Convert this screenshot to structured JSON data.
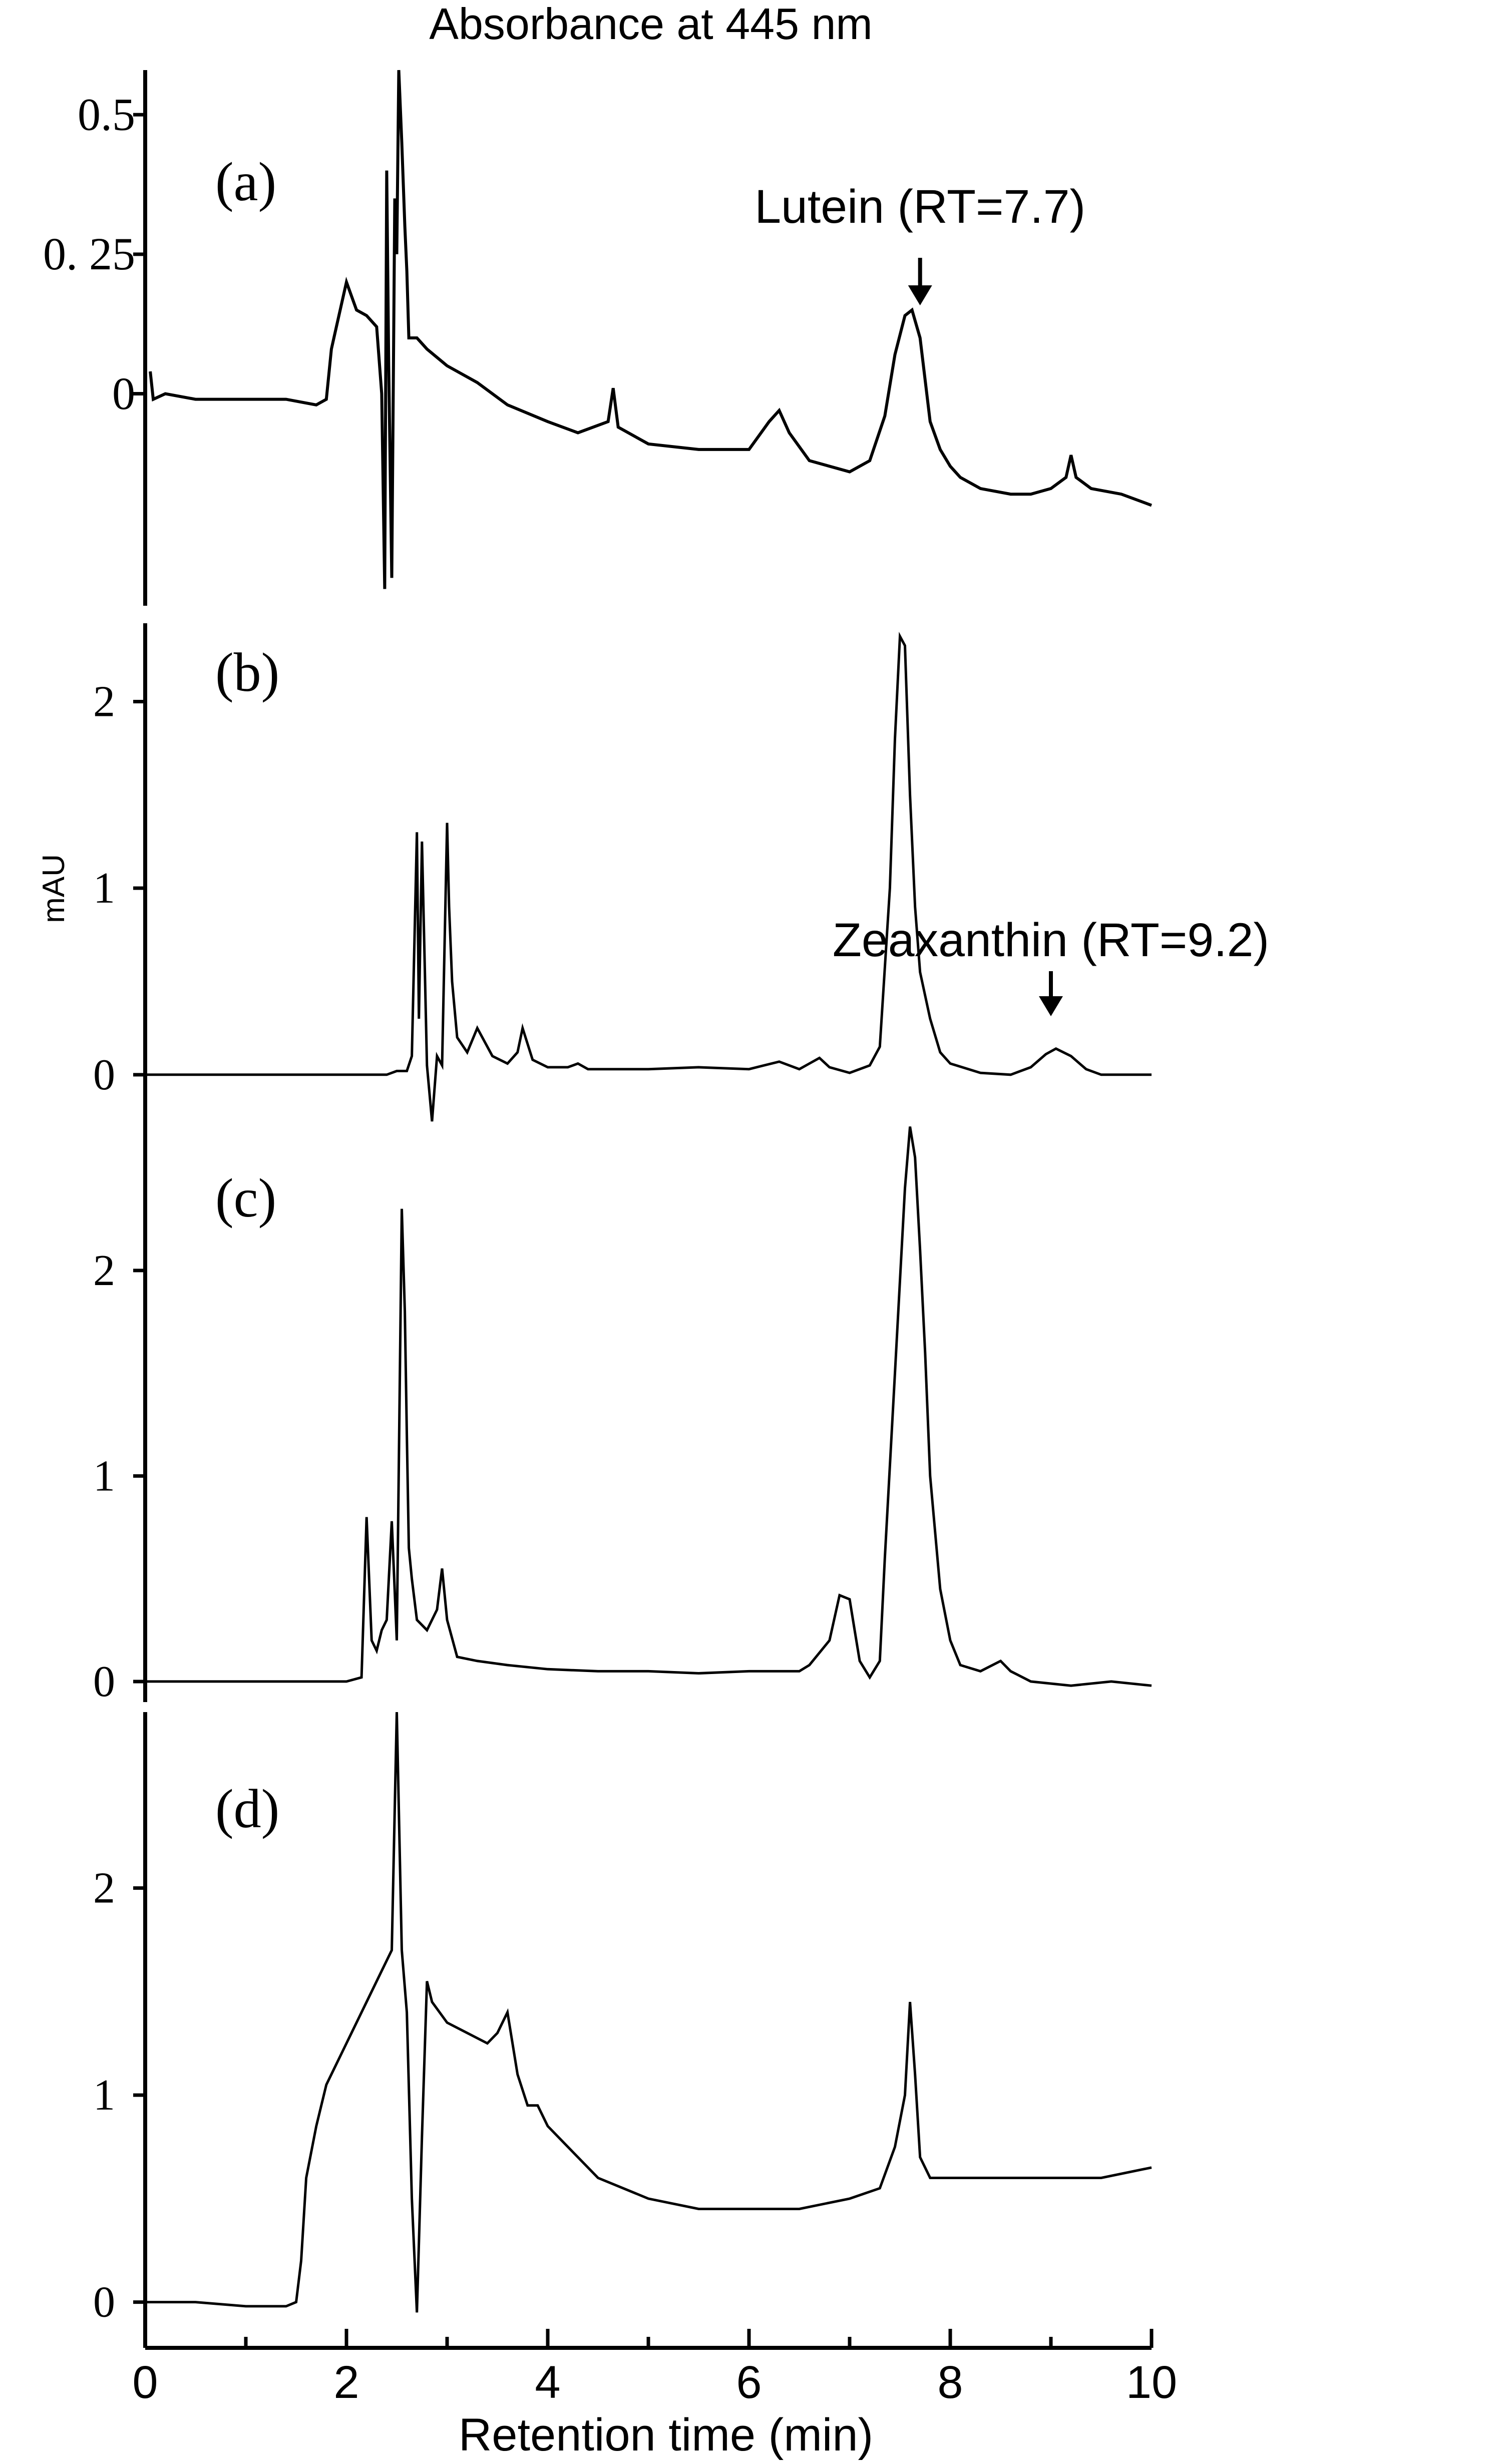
{
  "chart_data": {
    "type": "line",
    "title": "Absorbance at 445 nm",
    "xlabel": "Retention time (min)",
    "ylabel": "mAU",
    "xlim": [
      0,
      10
    ],
    "x_ticks": [
      "0",
      "2",
      "4",
      "6",
      "8",
      "10"
    ],
    "shared_x_axis": true,
    "grid": false,
    "legend": "none",
    "line_color": "#000000",
    "panels": [
      {
        "label": "(a)",
        "ylim": [
          -0.38,
          0.58
        ],
        "y_ticks": [
          {
            "value": 0.5,
            "label": "0.5"
          },
          {
            "value": 0.25,
            "label": "0. 25"
          },
          {
            "value": 0,
            "label": "0"
          }
        ],
        "annotations": [
          {
            "text": "Lutein (RT=7.7)",
            "x": 7.7,
            "arrow": true
          }
        ],
        "series": [
          {
            "x": [
              0.05,
              0.08,
              0.2,
              0.5,
              0.8,
              1.1,
              1.4,
              1.7,
              1.8,
              1.85,
              1.9,
              2.0,
              2.1,
              2.2,
              2.3,
              2.35,
              2.38,
              2.4,
              2.42,
              2.45,
              2.48,
              2.5,
              2.52,
              2.55,
              2.58,
              2.6,
              2.62,
              2.65,
              2.7,
              2.8,
              3.0,
              3.3,
              3.6,
              4.0,
              4.3,
              4.6,
              4.65,
              4.7,
              5.0,
              5.5,
              6.0,
              6.2,
              6.3,
              6.4,
              6.6,
              7.0,
              7.2,
              7.35,
              7.45,
              7.55,
              7.62,
              7.7,
              7.8,
              7.9,
              8.0,
              8.1,
              8.3,
              8.6,
              8.8,
              9.0,
              9.15,
              9.2,
              9.25,
              9.4,
              9.7,
              10.0
            ],
            "y": [
              0.04,
              -0.01,
              0.0,
              -0.01,
              -0.01,
              -0.01,
              -0.01,
              -0.02,
              -0.01,
              0.08,
              0.12,
              0.2,
              0.15,
              0.14,
              0.12,
              0.0,
              -0.35,
              0.4,
              0.05,
              -0.33,
              0.35,
              0.25,
              0.58,
              0.45,
              0.3,
              0.22,
              0.1,
              0.1,
              0.1,
              0.08,
              0.05,
              0.02,
              -0.02,
              -0.05,
              -0.07,
              -0.05,
              0.01,
              -0.06,
              -0.09,
              -0.1,
              -0.1,
              -0.05,
              -0.03,
              -0.07,
              -0.12,
              -0.14,
              -0.12,
              -0.04,
              0.07,
              0.14,
              0.15,
              0.1,
              -0.05,
              -0.1,
              -0.13,
              -0.15,
              -0.17,
              -0.18,
              -0.18,
              -0.17,
              -0.15,
              -0.11,
              -0.15,
              -0.17,
              -0.18,
              -0.2
            ]
          }
        ]
      },
      {
        "label": "(b)",
        "ylim": [
          -0.25,
          2.42
        ],
        "y_ticks": [
          {
            "value": 2,
            "label": "2"
          },
          {
            "value": 1,
            "label": "1"
          },
          {
            "value": 0,
            "label": "0"
          }
        ],
        "annotations": [
          {
            "text": "Zeaxanthin (RT=9.2)",
            "x": 9.0,
            "arrow": true
          }
        ],
        "series": [
          {
            "x": [
              0.0,
              0.5,
              1.0,
              1.5,
              2.0,
              2.4,
              2.5,
              2.6,
              2.65,
              2.7,
              2.72,
              2.75,
              2.8,
              2.85,
              2.9,
              2.95,
              3.0,
              3.02,
              3.05,
              3.1,
              3.2,
              3.3,
              3.45,
              3.6,
              3.7,
              3.75,
              3.85,
              4.0,
              4.2,
              4.3,
              4.4,
              5.0,
              5.5,
              6.0,
              6.3,
              6.5,
              6.6,
              6.7,
              6.8,
              7.0,
              7.2,
              7.3,
              7.4,
              7.45,
              7.5,
              7.55,
              7.6,
              7.65,
              7.7,
              7.8,
              7.9,
              8.0,
              8.3,
              8.6,
              8.8,
              8.95,
              9.05,
              9.2,
              9.35,
              9.5,
              10.0
            ],
            "y": [
              0.0,
              0.0,
              0.0,
              0.0,
              0.0,
              0.0,
              0.02,
              0.02,
              0.1,
              1.3,
              0.3,
              1.25,
              0.05,
              -0.25,
              0.1,
              0.05,
              1.35,
              0.9,
              0.5,
              0.2,
              0.12,
              0.25,
              0.1,
              0.06,
              0.12,
              0.25,
              0.08,
              0.04,
              0.04,
              0.06,
              0.03,
              0.03,
              0.04,
              0.03,
              0.07,
              0.03,
              0.06,
              0.09,
              0.04,
              0.01,
              0.05,
              0.15,
              1.0,
              1.8,
              2.35,
              2.3,
              1.5,
              0.9,
              0.55,
              0.3,
              0.12,
              0.06,
              0.01,
              0.0,
              0.04,
              0.11,
              0.14,
              0.1,
              0.03,
              0.0,
              0.0
            ]
          }
        ]
      },
      {
        "label": "(c)",
        "ylim": [
          -0.1,
          2.75
        ],
        "y_ticks": [
          {
            "value": 2,
            "label": "2"
          },
          {
            "value": 1,
            "label": "1"
          },
          {
            "value": 0,
            "label": "0"
          }
        ],
        "annotations": [],
        "series": [
          {
            "x": [
              0.0,
              0.5,
              1.0,
              1.5,
              2.0,
              2.15,
              2.2,
              2.25,
              2.3,
              2.35,
              2.4,
              2.45,
              2.5,
              2.55,
              2.58,
              2.6,
              2.62,
              2.65,
              2.7,
              2.8,
              2.9,
              2.95,
              3.0,
              3.1,
              3.3,
              3.6,
              4.0,
              4.5,
              5.0,
              5.5,
              6.0,
              6.5,
              6.6,
              6.8,
              6.9,
              7.0,
              7.05,
              7.1,
              7.2,
              7.3,
              7.35,
              7.45,
              7.55,
              7.6,
              7.65,
              7.7,
              7.75,
              7.8,
              7.9,
              8.0,
              8.1,
              8.3,
              8.5,
              8.6,
              8.8,
              9.2,
              9.6,
              10.0
            ],
            "y": [
              0.0,
              0.0,
              0.0,
              0.0,
              0.0,
              0.02,
              0.8,
              0.2,
              0.15,
              0.25,
              0.3,
              0.78,
              0.2,
              2.3,
              1.8,
              1.2,
              0.65,
              0.5,
              0.3,
              0.25,
              0.35,
              0.55,
              0.3,
              0.12,
              0.1,
              0.08,
              0.06,
              0.05,
              0.05,
              0.04,
              0.05,
              0.05,
              0.08,
              0.2,
              0.42,
              0.4,
              0.25,
              0.1,
              0.02,
              0.1,
              0.6,
              1.5,
              2.4,
              2.7,
              2.55,
              2.1,
              1.6,
              1.0,
              0.45,
              0.2,
              0.08,
              0.05,
              0.1,
              0.05,
              0.0,
              -0.02,
              0.0,
              -0.02
            ]
          }
        ]
      },
      {
        "label": "(d)",
        "ylim": [
          -0.1,
          2.85
        ],
        "y_ticks": [
          {
            "value": 2,
            "label": "2"
          },
          {
            "value": 1,
            "label": "1"
          },
          {
            "value": 0,
            "label": "0"
          }
        ],
        "annotations": [],
        "series": [
          {
            "x": [
              0.0,
              0.5,
              1.0,
              1.4,
              1.5,
              1.55,
              1.6,
              1.7,
              1.8,
              2.0,
              2.2,
              2.3,
              2.4,
              2.45,
              2.5,
              2.55,
              2.6,
              2.65,
              2.7,
              2.75,
              2.8,
              2.85,
              3.0,
              3.2,
              3.4,
              3.5,
              3.6,
              3.7,
              3.8,
              3.9,
              4.0,
              4.2,
              4.5,
              5.0,
              5.5,
              6.0,
              6.5,
              7.0,
              7.3,
              7.45,
              7.55,
              7.6,
              7.65,
              7.7,
              7.8,
              8.0,
              8.5,
              9.0,
              9.5,
              10.0
            ],
            "y": [
              0.0,
              0.0,
              -0.02,
              -0.02,
              0.0,
              0.2,
              0.6,
              0.85,
              1.05,
              1.25,
              1.45,
              1.55,
              1.65,
              1.7,
              2.85,
              1.7,
              1.4,
              0.5,
              -0.05,
              0.8,
              1.55,
              1.45,
              1.35,
              1.3,
              1.25,
              1.3,
              1.4,
              1.1,
              0.95,
              0.95,
              0.85,
              0.75,
              0.6,
              0.5,
              0.45,
              0.45,
              0.45,
              0.5,
              0.55,
              0.75,
              1.0,
              1.45,
              1.1,
              0.7,
              0.6,
              0.6,
              0.6,
              0.6,
              0.6,
              0.65
            ]
          }
        ]
      }
    ]
  }
}
